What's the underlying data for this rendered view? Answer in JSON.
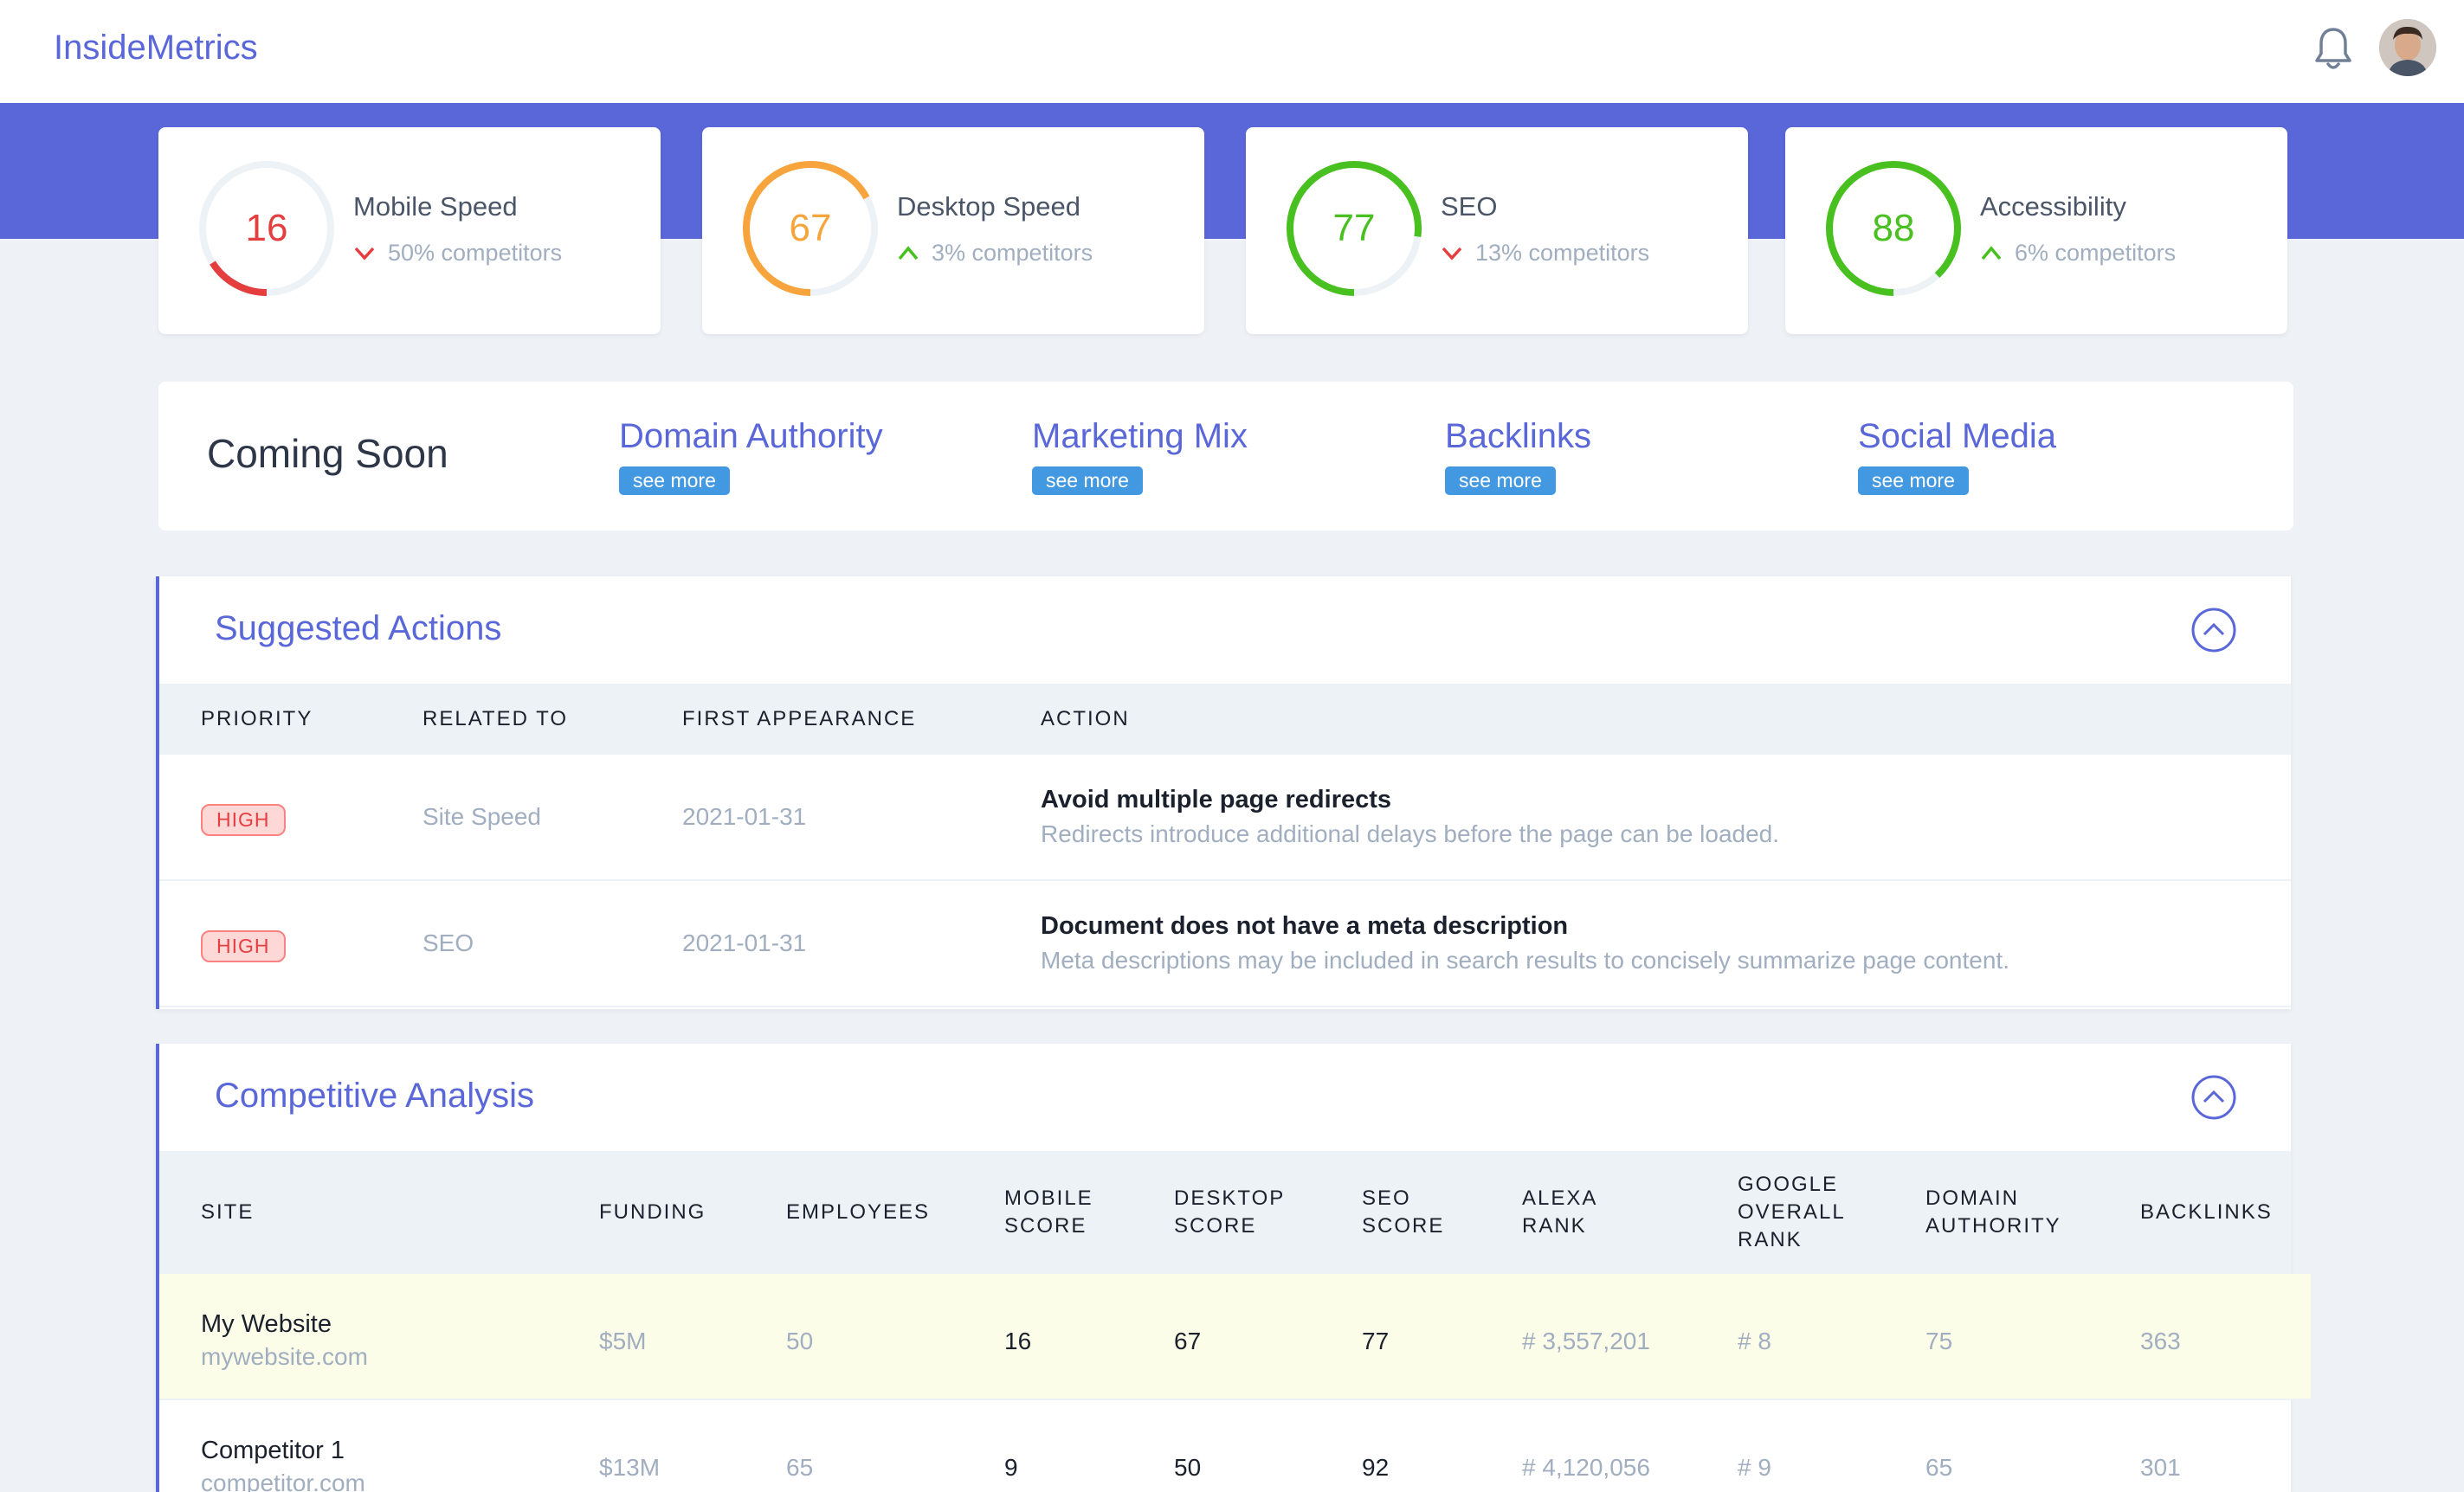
{
  "app": {
    "brand": "InsideMetrics",
    "bell_icon": "bell-icon",
    "avatar_icon": "avatar"
  },
  "scores": [
    {
      "label": "Mobile Speed",
      "value": "16",
      "fraction": 0.16,
      "trend": "50% competitors",
      "direction": "down",
      "color": "#e53e3e"
    },
    {
      "label": "Desktop Speed",
      "value": "67",
      "fraction": 0.67,
      "trend": "3% competitors",
      "direction": "up",
      "color": "#f6a43b"
    },
    {
      "label": "SEO",
      "value": "77",
      "fraction": 0.77,
      "trend": "13% competitors",
      "direction": "down",
      "color": "#48c01f"
    },
    {
      "label": "Accessibility",
      "value": "88",
      "fraction": 0.88,
      "trend": "6% competitors",
      "direction": "up",
      "color": "#48c01f"
    }
  ],
  "coming_soon": {
    "title": "Coming Soon",
    "items": [
      {
        "label": "Domain Authority",
        "button": "see more"
      },
      {
        "label": "Marketing Mix",
        "button": "see more"
      },
      {
        "label": "Backlinks",
        "button": "see more"
      },
      {
        "label": "Social Media",
        "button": "see more"
      }
    ]
  },
  "suggested": {
    "title": "Suggested Actions",
    "columns": [
      "PRIORITY",
      "RELATED TO",
      "FIRST APPEARANCE",
      "ACTION"
    ],
    "rows": [
      {
        "priority": "HIGH",
        "related": "Site Speed",
        "date": "2021-01-31",
        "action": "Avoid multiple page redirects",
        "desc": "Redirects introduce additional delays before the page can be loaded."
      },
      {
        "priority": "HIGH",
        "related": "SEO",
        "date": "2021-01-31",
        "action": "Document does not have a meta description",
        "desc": "Meta descriptions may be included in search results to concisely summarize page content."
      }
    ]
  },
  "competitive": {
    "title": "Competitive Analysis",
    "columns": [
      "SITE",
      "FUNDING",
      "EMPLOYEES",
      "MOBILE\nSCORE",
      "DESKTOP\nSCORE",
      "SEO\nSCORE",
      "ALEXA\nRANK",
      "GOOGLE\nOVERALL\nRANK",
      "DOMAIN\nAUTHORITY",
      "BACKLINKS"
    ],
    "rows": [
      {
        "name": "My Website",
        "url": "mywebsite.com",
        "funding": "$5M",
        "employees": "50",
        "mobile": "16",
        "desktop": "67",
        "seo": "77",
        "alexa": "# 3,557,201",
        "google": "# 8",
        "authority": "75",
        "backlinks": "363"
      },
      {
        "name": "Competitor 1",
        "url": "competitor.com",
        "funding": "$13M",
        "employees": "65",
        "mobile": "9",
        "desktop": "50",
        "seo": "92",
        "alexa": "# 4,120,056",
        "google": "# 9",
        "authority": "65",
        "backlinks": "301"
      }
    ]
  }
}
